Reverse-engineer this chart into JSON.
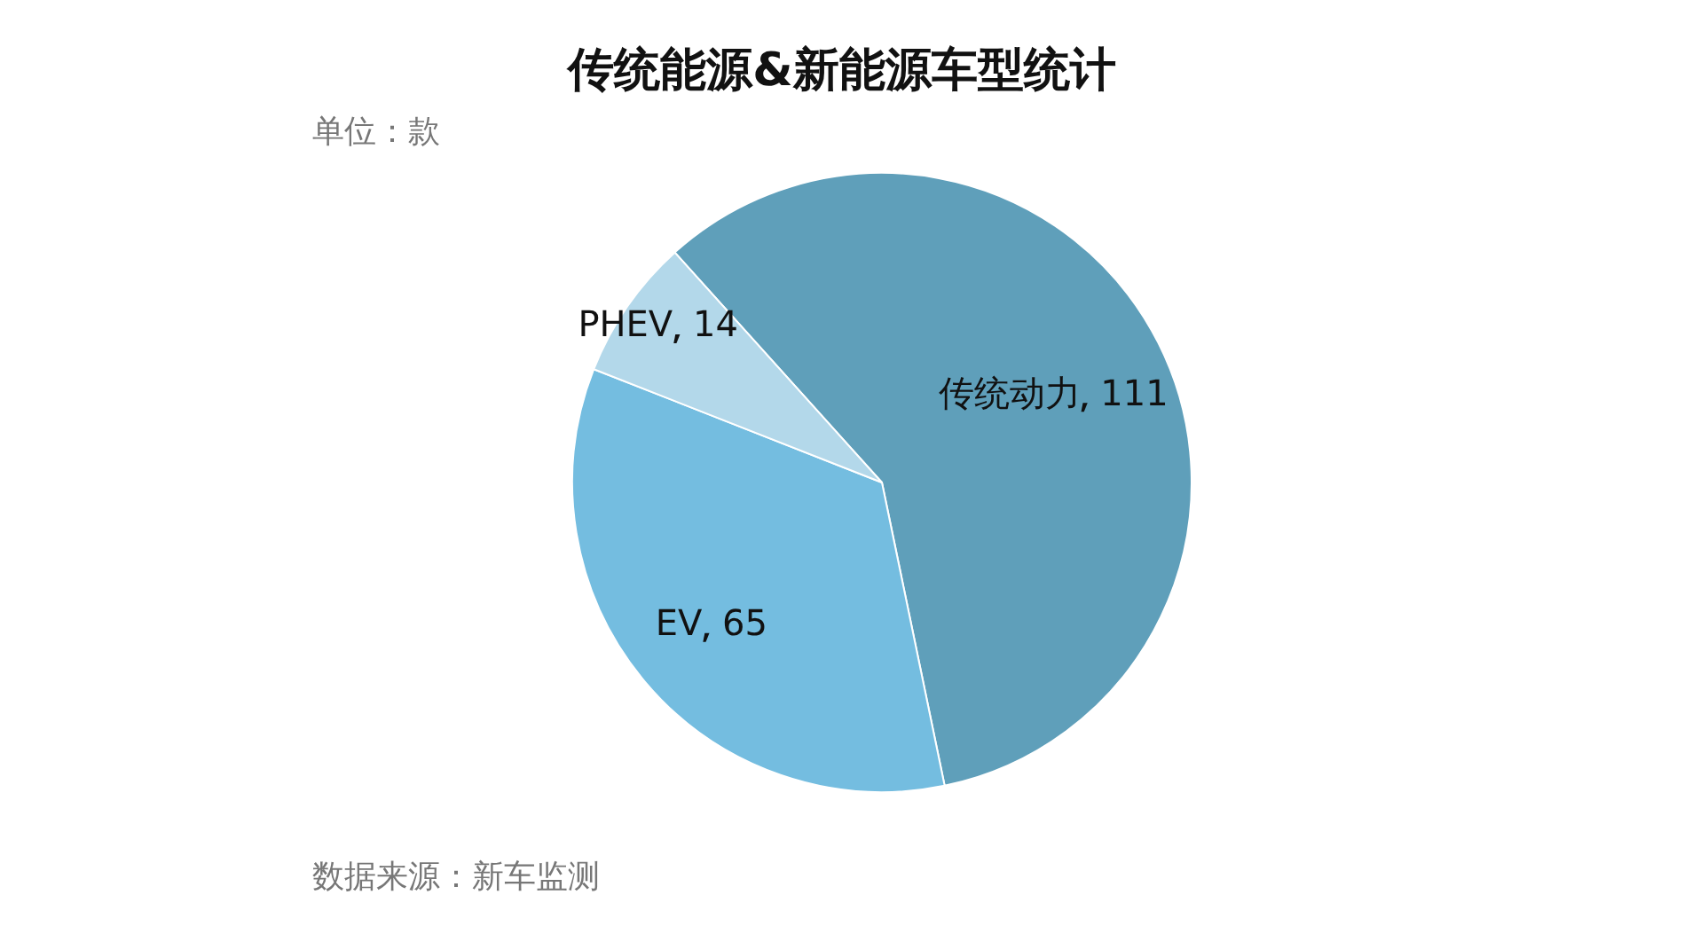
{
  "chart_data": {
    "type": "pie",
    "title": "传统能源&新能源车型统计",
    "subtitle": "单位：款",
    "categories": [
      "传统动力",
      "EV",
      "PHEV"
    ],
    "values": [
      111,
      65,
      14
    ],
    "colors": [
      "#5f9fba",
      "#74bde0",
      "#b3d8ea"
    ],
    "data_labels": true,
    "legend": false,
    "annotations": [
      "数据来源：新车监测"
    ]
  }
}
